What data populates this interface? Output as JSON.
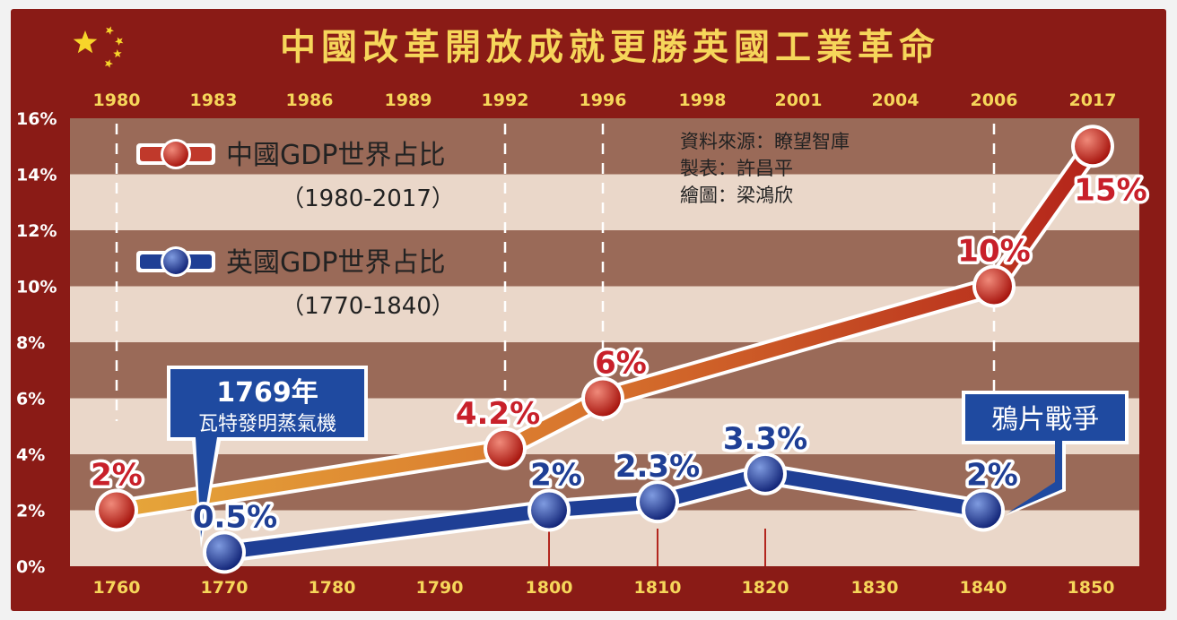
{
  "chart_data": {
    "type": "line",
    "title": "中國改革開放成就更勝英國工業革命",
    "y_ticks": [
      "0%",
      "2%",
      "4%",
      "6%",
      "8%",
      "10%",
      "12%",
      "14%",
      "16%"
    ],
    "ylim": [
      0,
      16
    ],
    "top_axis_labels": [
      "1980",
      "1983",
      "1986",
      "1989",
      "1992",
      "1996",
      "1998",
      "2001",
      "2004",
      "2006",
      "2017"
    ],
    "bottom_axis_labels": [
      "1760",
      "1770",
      "1780",
      "1790",
      "1800",
      "1810",
      "1820",
      "1830",
      "1840",
      "1850"
    ],
    "series": [
      {
        "name": "中國GDP世界占比",
        "period": "（1980-2017）",
        "color": "#c0392b",
        "points": [
          {
            "x": "1980",
            "y": 2,
            "label": "2%"
          },
          {
            "x": "1992",
            "y": 4.2,
            "label": "4.2%"
          },
          {
            "x": "1996",
            "y": 6,
            "label": "6%"
          },
          {
            "x": "2006",
            "y": 10,
            "label": "10%"
          },
          {
            "x": "2017",
            "y": 15,
            "label": "15%"
          }
        ]
      },
      {
        "name": "英國GDP世界占比",
        "period": "（1770-1840）",
        "color": "#1f3f95",
        "points": [
          {
            "x": "1770",
            "y": 0.5,
            "label": "0.5%"
          },
          {
            "x": "1800",
            "y": 2,
            "label": "2%"
          },
          {
            "x": "1810",
            "y": 2.3,
            "label": "2.3%"
          },
          {
            "x": "1820",
            "y": 3.3,
            "label": "3.3%"
          },
          {
            "x": "1840",
            "y": 2,
            "label": "2%"
          }
        ]
      }
    ],
    "annotations": {
      "steam_year": "1769年",
      "steam_text": "瓦特發明蒸氣機",
      "opium_war": "鴉片戰爭"
    },
    "credits": [
      "資料來源：瞭望智庫",
      "製表：許昌平",
      "繪圖：梁鴻欣"
    ],
    "colors": {
      "frame": "#8a1b16",
      "band_dark": "#9a6a58",
      "band_light": "#ead7c9",
      "axis_label": "#f6d65a",
      "callout": "#1f4aa0"
    }
  }
}
